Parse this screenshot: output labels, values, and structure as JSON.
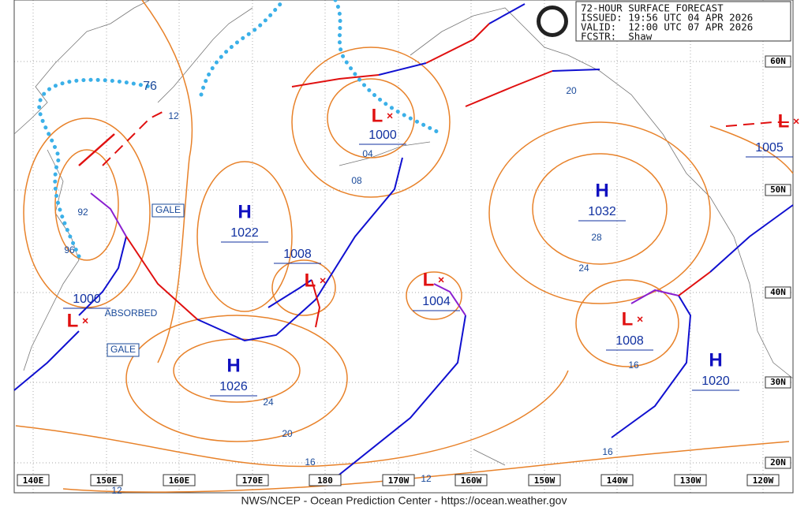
{
  "header": {
    "lines": [
      "72-HOUR SURFACE FORECAST",
      "ISSUED: 19:56 UTC 04 APR 2026",
      "VALID:  12:00 UTC 07 APR 2026",
      "FCSTR:  Shaw"
    ]
  },
  "highs": [
    {
      "letter": "H",
      "pressure": "1022"
    },
    {
      "letter": "H",
      "pressure": "1026"
    },
    {
      "letter": "H",
      "pressure": "1032"
    },
    {
      "letter": "H",
      "pressure": "1020"
    }
  ],
  "lows": [
    {
      "letter": "L",
      "pressure": "1000"
    },
    {
      "letter": "L",
      "pressure": "1008"
    },
    {
      "letter": "L",
      "pressure": "1004"
    },
    {
      "letter": "L",
      "pressure": "1008"
    },
    {
      "letter": "L",
      "pressure": "1000"
    },
    {
      "letter": "L",
      "pressure": "1005"
    }
  ],
  "isobar_labels": [
    "12",
    "04",
    "08",
    "20",
    "28",
    "24",
    "16",
    "24",
    "20",
    "16",
    "12",
    "16",
    "12",
    "96",
    "92",
    "76"
  ],
  "annotations": [
    "GALE",
    "GALE",
    "ABSORBED"
  ],
  "lon_labels": [
    "140E",
    "150E",
    "160E",
    "170E",
    "180",
    "170W",
    "160W",
    "150W",
    "140W",
    "130W",
    "120W"
  ],
  "lat_labels": [
    "60N",
    "50N",
    "40N",
    "30N",
    "20N"
  ],
  "footer": "NWS/NCEP - Ocean Prediction Center - https://ocean.weather.gov"
}
